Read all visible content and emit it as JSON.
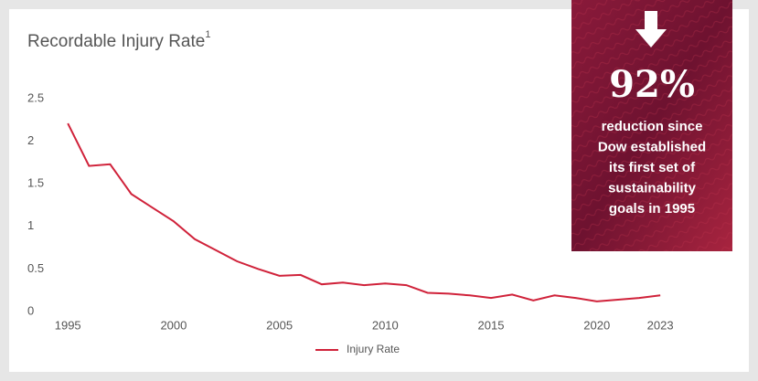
{
  "chart_data": {
    "type": "line",
    "title": "Recordable Injury Rate",
    "title_superscript": "1",
    "x": [
      1995,
      1996,
      1997,
      1998,
      1999,
      2000,
      2001,
      2002,
      2003,
      2004,
      2005,
      2006,
      2007,
      2008,
      2009,
      2010,
      2011,
      2012,
      2013,
      2014,
      2015,
      2016,
      2017,
      2018,
      2019,
      2020,
      2021,
      2022,
      2023
    ],
    "series": [
      {
        "name": "Injury Rate",
        "color": "#d0223a",
        "values": [
          2.21,
          1.71,
          1.73,
          1.38,
          1.22,
          1.06,
          0.85,
          0.72,
          0.59,
          0.5,
          0.42,
          0.43,
          0.32,
          0.34,
          0.31,
          0.33,
          0.31,
          0.22,
          0.21,
          0.19,
          0.16,
          0.2,
          0.13,
          0.19,
          0.16,
          0.12,
          0.14,
          0.16,
          0.19
        ]
      }
    ],
    "xlim": [
      1994.3,
      2025.5
    ],
    "ylim": [
      0,
      2.5
    ],
    "xticks": [
      1995,
      2000,
      2005,
      2010,
      2015,
      2020,
      2023
    ],
    "yticks": [
      0,
      0.5,
      1,
      1.5,
      2,
      2.5
    ],
    "legend": "bottom",
    "callout": {
      "figure": "92%",
      "lines": [
        "reduction since",
        "Dow established",
        "its first set of",
        "sustainability",
        "goals in 1995"
      ]
    }
  }
}
